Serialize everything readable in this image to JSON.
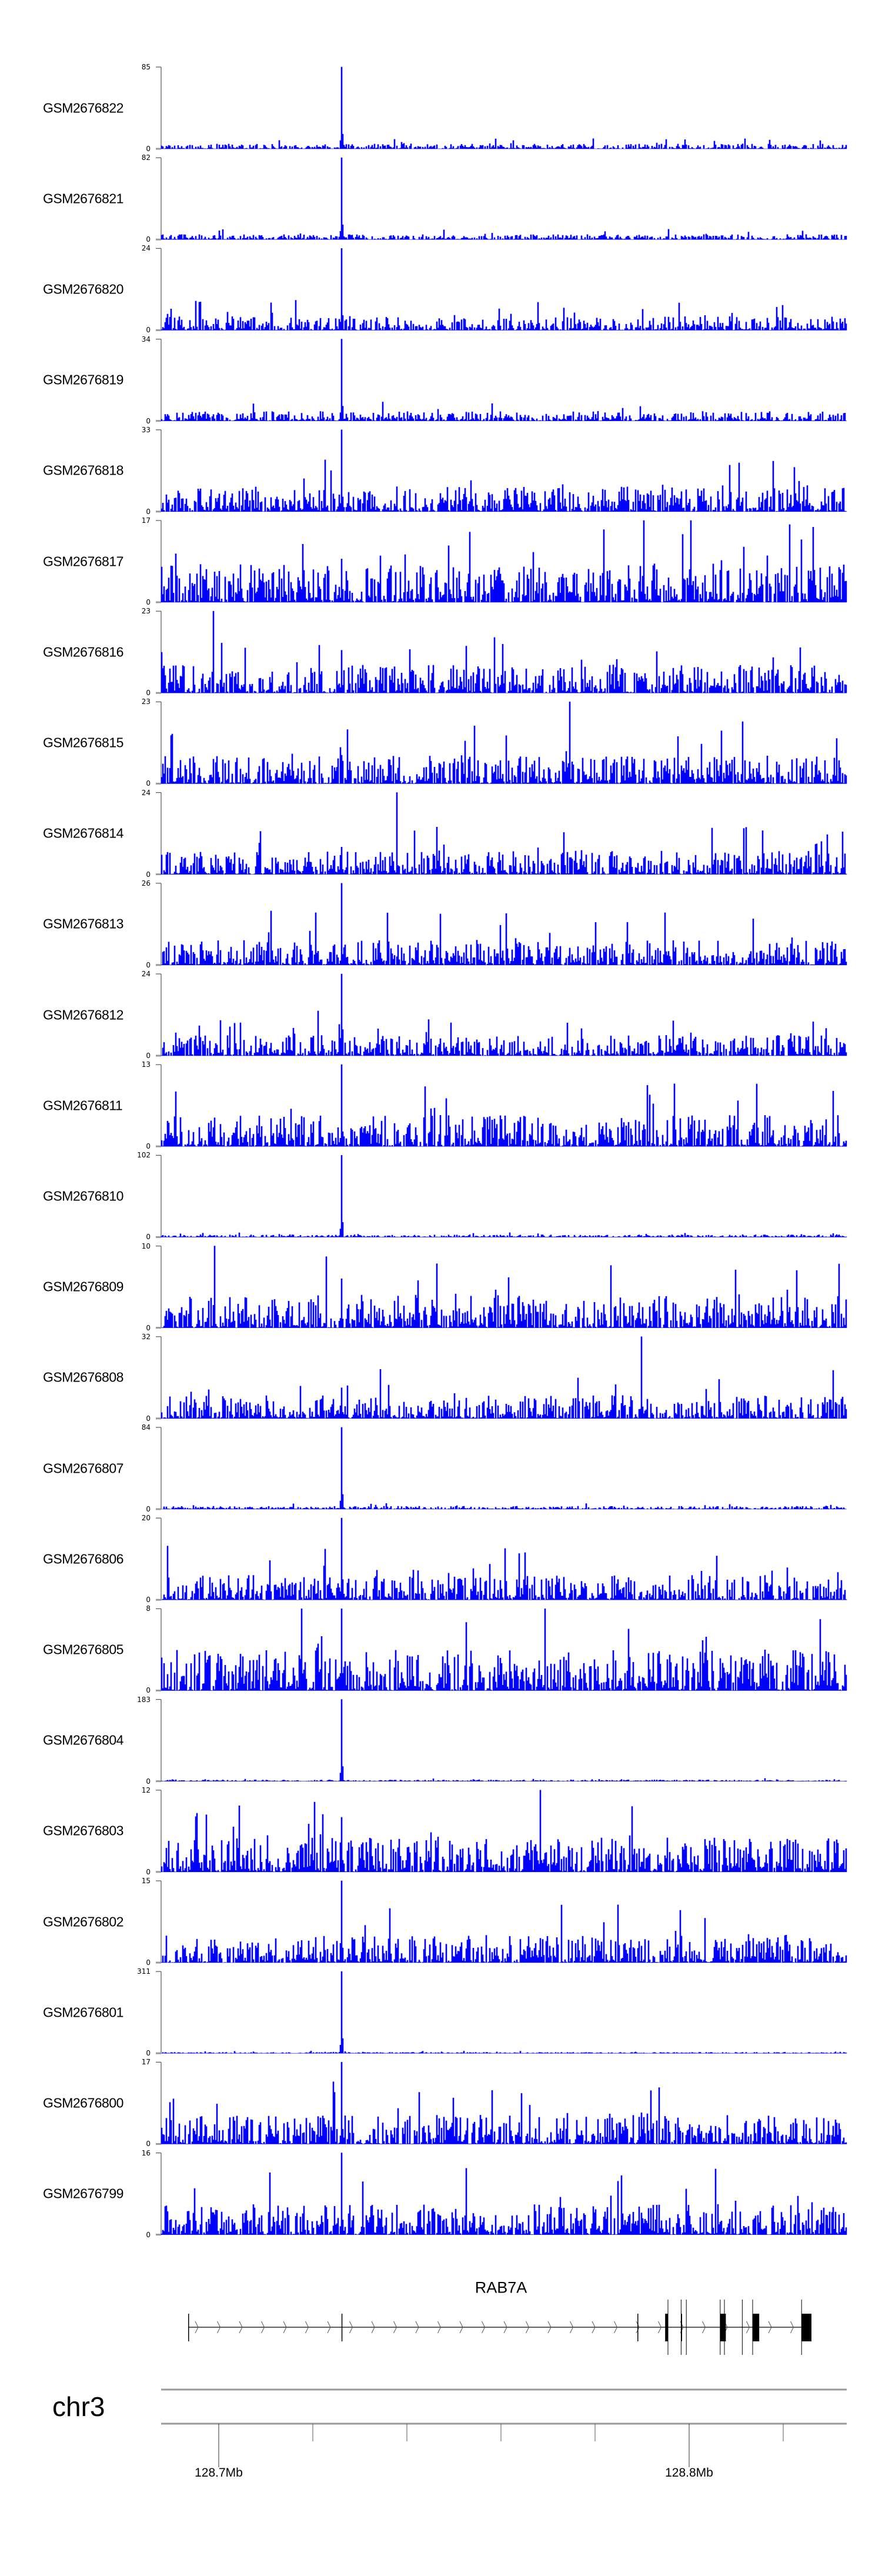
{
  "chart_data": {
    "type": "area",
    "title": "",
    "xlabel": "",
    "ylabel": "",
    "xlim": [
      128.68775,
      128.8335
    ],
    "color": "#0000ff",
    "tracks": [
      {
        "name": "GSM2676822",
        "ymin": 0,
        "ymax": 85,
        "peak": 85,
        "background": 5
      },
      {
        "name": "GSM2676821",
        "ymin": 0,
        "ymax": 82,
        "peak": 82,
        "background": 5
      },
      {
        "name": "GSM2676820",
        "ymin": 0,
        "ymax": 24,
        "peak": 24,
        "background": 4
      },
      {
        "name": "GSM2676819",
        "ymin": 0,
        "ymax": 34,
        "peak": 34,
        "background": 4
      },
      {
        "name": "GSM2676818",
        "ymin": 0,
        "ymax": 33,
        "peak": 33,
        "background": 10
      },
      {
        "name": "GSM2676817",
        "ymin": 0,
        "ymax": 17,
        "peak": 9,
        "background": 8
      },
      {
        "name": "GSM2676816",
        "ymin": 0,
        "ymax": 23,
        "peak": 12,
        "background": 8
      },
      {
        "name": "GSM2676815",
        "ymin": 0,
        "ymax": 23,
        "peak": 8,
        "background": 8
      },
      {
        "name": "GSM2676814",
        "ymin": 0,
        "ymax": 24,
        "peak": 8,
        "background": 7
      },
      {
        "name": "GSM2676813",
        "ymin": 0,
        "ymax": 26,
        "peak": 9,
        "background": 8
      },
      {
        "name": "GSM2676812",
        "ymin": 0,
        "ymax": 24,
        "peak": 24,
        "background": 6
      },
      {
        "name": "GSM2676811",
        "ymin": 0,
        "ymax": 13,
        "peak": 13,
        "background": 5
      },
      {
        "name": "GSM2676810",
        "ymin": 0,
        "ymax": 102,
        "peak": 102,
        "background": 3
      },
      {
        "name": "GSM2676809",
        "ymin": 0,
        "ymax": 10,
        "peak": 6,
        "background": 4
      },
      {
        "name": "GSM2676808",
        "ymin": 0,
        "ymax": 32,
        "peak": 12,
        "background": 9
      },
      {
        "name": "GSM2676807",
        "ymin": 0,
        "ymax": 84,
        "peak": 84,
        "background": 3
      },
      {
        "name": "GSM2676806",
        "ymin": 0,
        "ymax": 20,
        "peak": 20,
        "background": 6
      },
      {
        "name": "GSM2676805",
        "ymin": 0,
        "ymax": 8,
        "peak": 8,
        "background": 4
      },
      {
        "name": "GSM2676804",
        "ymin": 0,
        "ymax": 183,
        "peak": 183,
        "background": 3
      },
      {
        "name": "GSM2676803",
        "ymin": 0,
        "ymax": 12,
        "peak": 8,
        "background": 5
      },
      {
        "name": "GSM2676802",
        "ymin": 0,
        "ymax": 15,
        "peak": 15,
        "background": 5
      },
      {
        "name": "GSM2676801",
        "ymin": 0,
        "ymax": 311,
        "peak": 311,
        "background": 4
      },
      {
        "name": "GSM2676800",
        "ymin": 0,
        "ymax": 17,
        "peak": 17,
        "background": 6
      },
      {
        "name": "GSM2676799",
        "ymin": 0,
        "ymax": 16,
        "peak": 16,
        "background": 6
      }
    ],
    "peak_position_mb": 128.7259,
    "gene": {
      "name": "RAB7A",
      "strand": "+",
      "start_mb": 128.6935,
      "end_mb": 128.826,
      "exons": [
        [
          128.6935,
          128.6936
        ],
        [
          128.7261,
          128.7262
        ],
        [
          128.789,
          128.7891
        ],
        [
          128.7949,
          128.7955
        ],
        [
          128.7983,
          128.7985
        ],
        [
          128.8066,
          128.8078
        ],
        [
          128.8135,
          128.8149
        ],
        [
          128.8239,
          128.826
        ]
      ],
      "transcript_marks": [
        128.7955,
        128.7983,
        128.7994,
        128.8066,
        128.8075,
        128.8113,
        128.8135,
        128.8239
      ]
    },
    "chromosome": "chr3",
    "axis_ticks_mb": [
      128.7,
      128.72,
      128.74,
      128.76,
      128.78,
      128.8,
      128.82
    ],
    "axis_labels": [
      {
        "mb": 128.7,
        "text": "128.7Mb"
      },
      {
        "mb": 128.8,
        "text": "128.8Mb"
      }
    ]
  }
}
